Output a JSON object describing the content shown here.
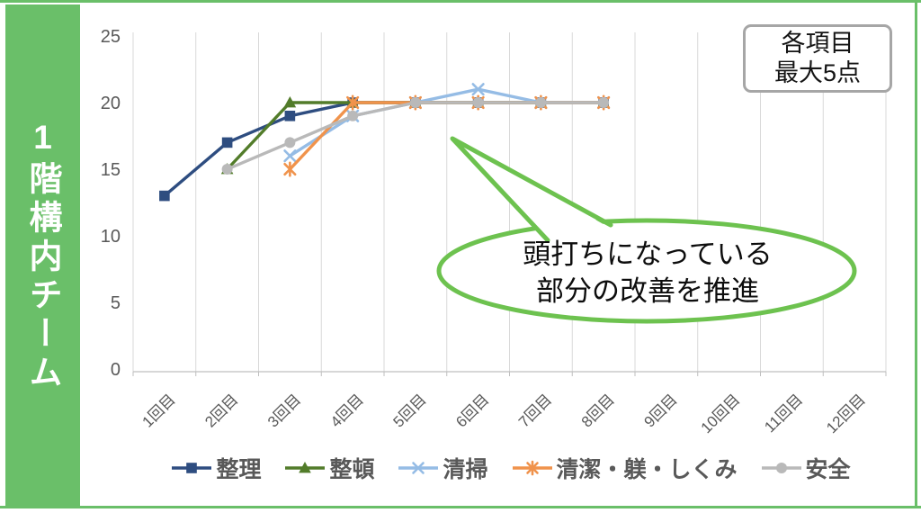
{
  "sidebar": {
    "label": "1階構内チーム"
  },
  "note_box": {
    "line1": "各項目",
    "line2": "最大5点"
  },
  "callout": {
    "line1": "頭打ちになっている",
    "line2": "部分の改善を推進"
  },
  "theme": {
    "green": "#6abf69",
    "bubble_green": "#6dc24f",
    "box_border": "#a6a6a6",
    "axis_text": "#595959",
    "grid_line": "#d9d9d9",
    "axis_line": "#bfbfbf"
  },
  "chart_data": {
    "type": "line",
    "categories": [
      "1回目",
      "2回目",
      "3回目",
      "4回目",
      "5回目",
      "6回目",
      "7回目",
      "8回目",
      "9回目",
      "10回目",
      "11回目",
      "12回目"
    ],
    "yticks": [
      0,
      5,
      10,
      15,
      20,
      25
    ],
    "ylim": [
      0,
      25
    ],
    "grid": "vertical-only",
    "legend_position": "bottom",
    "series": [
      {
        "name": "整理",
        "color": "#2e4d80",
        "marker": "square",
        "values": [
          13,
          17,
          19,
          20,
          20,
          20,
          20,
          20,
          null,
          null,
          null,
          null
        ]
      },
      {
        "name": "整頓",
        "color": "#527c2a",
        "marker": "triangle",
        "values": [
          null,
          15,
          20,
          20,
          20,
          20,
          20,
          20,
          null,
          null,
          null,
          null
        ]
      },
      {
        "name": "清掃",
        "color": "#95bce5",
        "marker": "x",
        "values": [
          null,
          null,
          16,
          19,
          20,
          21,
          20,
          20,
          null,
          null,
          null,
          null
        ]
      },
      {
        "name": "清潔・躾・しくみ",
        "color": "#f0934c",
        "marker": "asterisk",
        "values": [
          null,
          null,
          15,
          20,
          20,
          20,
          20,
          20,
          null,
          null,
          null,
          null
        ]
      },
      {
        "name": "安全",
        "color": "#b9b9b9",
        "marker": "circle",
        "values": [
          null,
          15,
          17,
          19,
          20,
          20,
          20,
          20,
          null,
          null,
          null,
          null
        ]
      }
    ]
  }
}
